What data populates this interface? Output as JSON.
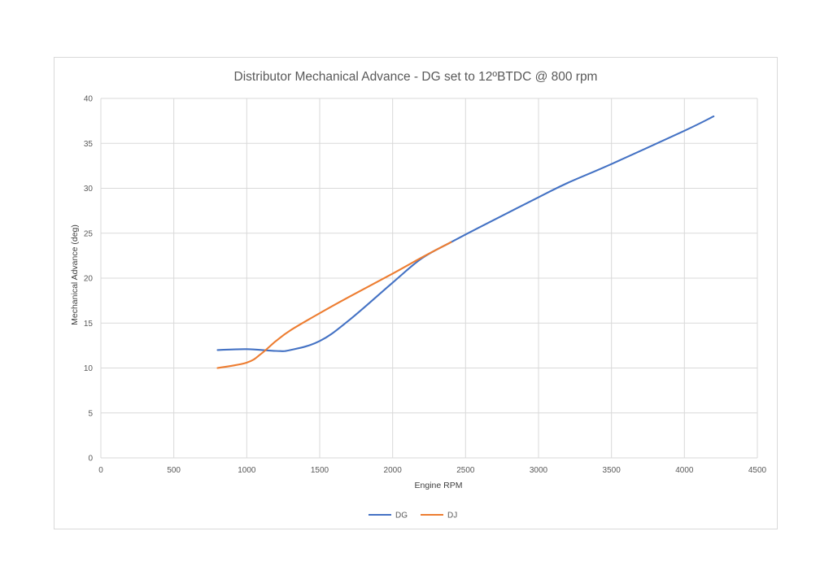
{
  "chart_data": {
    "type": "line",
    "title": "Distributor Mechanical Advance - DG set to 12ºBTDC @ 800 rpm",
    "xlabel": "Engine RPM",
    "ylabel": "Mechanical Advance (deg)",
    "xlim": [
      0,
      4500
    ],
    "ylim": [
      0,
      40
    ],
    "x_ticks": [
      0,
      500,
      1000,
      1500,
      2000,
      2500,
      3000,
      3500,
      4000,
      4500
    ],
    "y_ticks": [
      0,
      5,
      10,
      15,
      20,
      25,
      30,
      35,
      40
    ],
    "grid": true,
    "legend_position": "bottom",
    "series": [
      {
        "name": "DG",
        "color": "#4472C4",
        "x": [
          800,
          1000,
          1200,
          1300,
          1500,
          1700,
          2000,
          2200,
          2400,
          2600,
          3000,
          3200,
          3500,
          4000,
          4200
        ],
        "y": [
          12,
          12.1,
          11.9,
          12,
          13,
          15.3,
          19.5,
          22.2,
          24,
          25.7,
          29,
          30.6,
          32.7,
          36.4,
          38
        ]
      },
      {
        "name": "DJ",
        "color": "#ED7D31",
        "x": [
          800,
          1000,
          1100,
          1200,
          1300,
          1500,
          1700,
          2000,
          2200,
          2400
        ],
        "y": [
          10,
          10.6,
          11.6,
          13,
          14.2,
          16.1,
          17.9,
          20.5,
          22.3,
          24
        ]
      }
    ]
  }
}
